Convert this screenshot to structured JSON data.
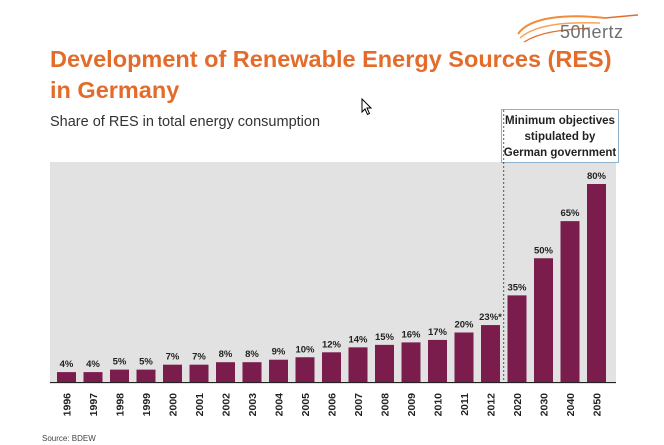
{
  "brand": {
    "logo_text": "50hertz",
    "accent": "#e36c2b"
  },
  "header": {
    "title_line1": "Development of Renewable Energy Sources (RES)",
    "title_line2": "in Germany",
    "subtitle": "Share of RES in total energy consumption"
  },
  "note": {
    "line1": "Minimum objectives",
    "line2": "stipulated by",
    "line3": "German government"
  },
  "footer": {
    "source": "Source: BDEW"
  },
  "chart_data": {
    "type": "bar",
    "title": "Development of Renewable Energy Sources (RES) in Germany",
    "subtitle": "Share of RES in total energy consumption",
    "categories": [
      "1996",
      "1997",
      "1998",
      "1999",
      "2000",
      "2001",
      "2002",
      "2003",
      "2004",
      "2005",
      "2006",
      "2007",
      "2008",
      "2009",
      "2010",
      "2011",
      "2012",
      "2020",
      "2030",
      "2040",
      "2050"
    ],
    "values": [
      4,
      4,
      5,
      5,
      7,
      7,
      8,
      8,
      9,
      10,
      12,
      14,
      15,
      16,
      17,
      20,
      23,
      35,
      50,
      65,
      80
    ],
    "value_labels": [
      "4%",
      "4%",
      "5%",
      "5%",
      "7%",
      "7%",
      "8%",
      "8%",
      "9%",
      "10%",
      "12%",
      "14%",
      "15%",
      "16%",
      "17%",
      "20%",
      "23%*",
      "35%",
      "50%",
      "65%",
      "80%"
    ],
    "unit": "%",
    "ylim": [
      0,
      80
    ],
    "grid": false,
    "bar_color": "#7b1d4c",
    "divider_after": "2012"
  }
}
